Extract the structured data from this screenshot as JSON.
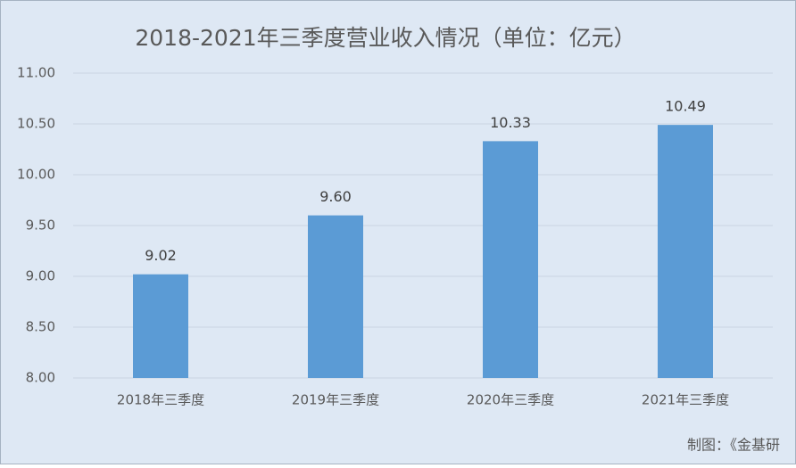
{
  "chart_data": {
    "type": "bar",
    "title": "2018-2021年三季度营业收入情况（单位：亿元）",
    "categories": [
      "2018年三季度",
      "2019年三季度",
      "2020年三季度",
      "2021年三季度"
    ],
    "values": [
      9.02,
      9.6,
      10.33,
      10.49
    ],
    "value_labels": [
      "9.02",
      "9.60",
      "10.33",
      "10.49"
    ],
    "color": "#5b9bd5",
    "ylim": [
      8,
      11
    ],
    "yticks": [
      {
        "value": 8,
        "label": "8.00"
      },
      {
        "value": 8.5,
        "label": "8.50"
      },
      {
        "value": 9,
        "label": "9.00"
      },
      {
        "value": 9.5,
        "label": "9.50"
      },
      {
        "value": 10,
        "label": "10.00"
      },
      {
        "value": 10.5,
        "label": "10.50"
      },
      {
        "value": 11,
        "label": "11.00"
      }
    ],
    "grid": true,
    "annotation": "制图：《金基研"
  }
}
